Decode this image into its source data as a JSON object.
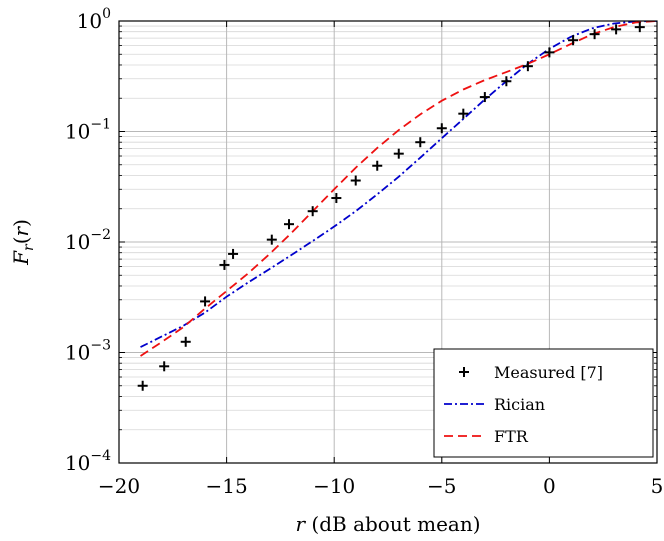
{
  "chart_data": {
    "type": "line",
    "xlabel": "r (dB about mean)",
    "ylabel": "Fr(r)",
    "xlim": [
      -20,
      5
    ],
    "ylim": [
      0.0001,
      1
    ],
    "yscale": "log",
    "grid": true,
    "legend_position": "bottom-right",
    "x_ticks": [
      -20,
      -15,
      -10,
      -5,
      0,
      5
    ],
    "y_ticks": [
      0.0001,
      0.001,
      0.01,
      0.1,
      1
    ],
    "series": [
      {
        "name": "Measured [7]",
        "style": "markers",
        "marker": "plus",
        "color": "#000000",
        "points": [
          [
            -18.9,
            0.0005
          ],
          [
            -17.9,
            0.00075
          ],
          [
            -16.9,
            0.00125
          ],
          [
            -16.0,
            0.0029
          ],
          [
            -15.1,
            0.0062
          ],
          [
            -14.7,
            0.0078
          ],
          [
            -12.9,
            0.0105
          ],
          [
            -12.1,
            0.0145
          ],
          [
            -11.0,
            0.019
          ],
          [
            -9.9,
            0.025
          ],
          [
            -9.0,
            0.036
          ],
          [
            -8.0,
            0.049
          ],
          [
            -7.0,
            0.063
          ],
          [
            -6.0,
            0.08
          ],
          [
            -5.0,
            0.107
          ],
          [
            -4.0,
            0.145
          ],
          [
            -3.0,
            0.205
          ],
          [
            -2.0,
            0.285
          ],
          [
            -1.0,
            0.39
          ],
          [
            0.0,
            0.52
          ],
          [
            1.1,
            0.67
          ],
          [
            2.1,
            0.76
          ],
          [
            3.1,
            0.84
          ],
          [
            4.2,
            0.88
          ]
        ]
      },
      {
        "name": "Rician",
        "style": "dash-dot",
        "color": "#0000cc",
        "points": [
          [
            -19,
            0.00112
          ],
          [
            -18,
            0.0014
          ],
          [
            -17,
            0.00175
          ],
          [
            -16,
            0.0023
          ],
          [
            -15,
            0.0032
          ],
          [
            -14,
            0.0043
          ],
          [
            -13,
            0.0057
          ],
          [
            -12,
            0.0076
          ],
          [
            -11,
            0.0102
          ],
          [
            -10,
            0.0138
          ],
          [
            -9,
            0.019
          ],
          [
            -8,
            0.027
          ],
          [
            -7,
            0.039
          ],
          [
            -6,
            0.058
          ],
          [
            -5,
            0.087
          ],
          [
            -4,
            0.13
          ],
          [
            -3,
            0.195
          ],
          [
            -2,
            0.285
          ],
          [
            -1,
            0.41
          ],
          [
            0,
            0.56
          ],
          [
            1,
            0.72
          ],
          [
            2,
            0.86
          ],
          [
            3,
            0.95
          ],
          [
            4,
            0.99
          ],
          [
            5,
            1.0
          ]
        ]
      },
      {
        "name": "FTR",
        "style": "dashed",
        "color": "#ee1111",
        "points": [
          [
            -19,
            0.00093
          ],
          [
            -18,
            0.00125
          ],
          [
            -17,
            0.0017
          ],
          [
            -16,
            0.0025
          ],
          [
            -15,
            0.0036
          ],
          [
            -14,
            0.0052
          ],
          [
            -13,
            0.0078
          ],
          [
            -12,
            0.012
          ],
          [
            -11,
            0.019
          ],
          [
            -10,
            0.03
          ],
          [
            -9,
            0.047
          ],
          [
            -8,
            0.071
          ],
          [
            -7,
            0.103
          ],
          [
            -6,
            0.143
          ],
          [
            -5,
            0.19
          ],
          [
            -4,
            0.24
          ],
          [
            -3,
            0.292
          ],
          [
            -2,
            0.345
          ],
          [
            -1,
            0.41
          ],
          [
            0,
            0.5
          ],
          [
            1,
            0.62
          ],
          [
            2,
            0.76
          ],
          [
            3,
            0.88
          ],
          [
            4,
            0.97
          ],
          [
            5,
            1.0
          ]
        ]
      }
    ]
  }
}
